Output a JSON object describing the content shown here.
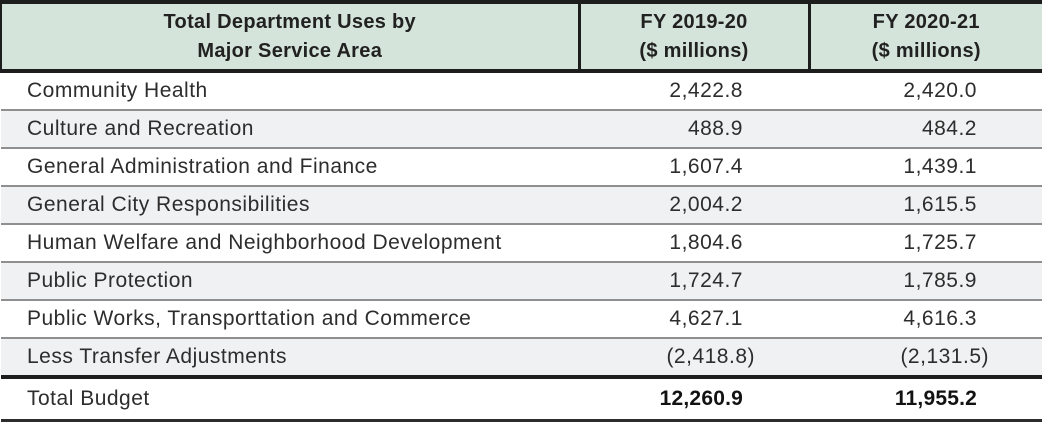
{
  "chart_data": {
    "type": "table",
    "title": "Total Department Uses by Major Service Area",
    "header": {
      "col1": {
        "line1": "Total Department Uses by",
        "line2": "Major Service Area"
      },
      "col2": {
        "line1": "FY 2019-20",
        "line2": "($ millions)"
      },
      "col3": {
        "line1": "FY 2020-21",
        "line2": "($ millions)"
      }
    },
    "rows": [
      {
        "area": "Community Health",
        "fy2019_20": "2,422.8",
        "fy2020_21": "2,420.0"
      },
      {
        "area": "Culture and Recreation",
        "fy2019_20": "488.9",
        "fy2020_21": "484.2"
      },
      {
        "area": "General Administration and Finance",
        "fy2019_20": "1,607.4",
        "fy2020_21": "1,439.1"
      },
      {
        "area": "General City Responsibilities",
        "fy2019_20": "2,004.2",
        "fy2020_21": "1,615.5"
      },
      {
        "area": "Human Welfare and Neighborhood Development",
        "fy2019_20": "1,804.6",
        "fy2020_21": "1,725.7"
      },
      {
        "area": "Public Protection",
        "fy2019_20": "1,724.7",
        "fy2020_21": "1,785.9"
      },
      {
        "area": "Public Works, Transporttation and Commerce",
        "fy2019_20": "4,627.1",
        "fy2020_21": "4,616.3"
      },
      {
        "area": "Less Transfer Adjustments",
        "fy2019_20": "(2,418.8)",
        "fy2020_21": "(2,131.5)"
      }
    ],
    "total_row": {
      "area": "Total Budget",
      "fy2019_20": "12,260.9",
      "fy2020_21": "11,955.2"
    }
  },
  "colors": {
    "header_bg": "#d5e4da",
    "row_alt_bg": "#f0f1f2",
    "border_dark": "#1d1d1d",
    "row_divider": "#8f8f8f",
    "text": "#2d2d2d"
  }
}
